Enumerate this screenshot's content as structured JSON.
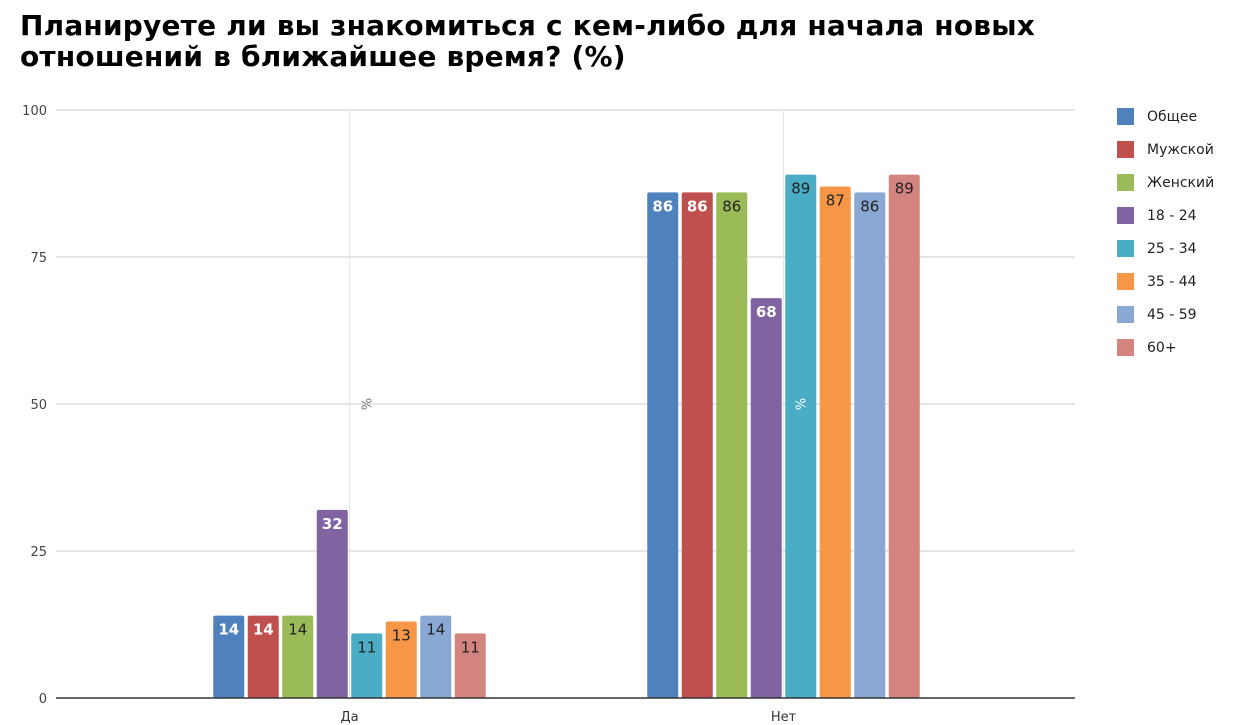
{
  "chart_data": {
    "type": "bar",
    "title": "Планируете ли вы знакомиться с кем-либо для начала новых отношений в ближайшее время? (%)",
    "xlabel": "",
    "ylabel": "%",
    "ylim": [
      0,
      100
    ],
    "yticks": [
      "0",
      "25",
      "50",
      "75",
      "100"
    ],
    "categories": [
      "Да",
      "Нет"
    ],
    "grid": true,
    "legend_position": "right",
    "series": [
      {
        "name": "Общее",
        "color": "#4f81bd",
        "label_color": "#ffffff",
        "values": [
          14,
          86
        ]
      },
      {
        "name": "Мужской",
        "color": "#c0504d",
        "label_color": "#ffffff",
        "values": [
          14,
          86
        ]
      },
      {
        "name": "Женский",
        "color": "#9bbb59",
        "label_color": "#222222",
        "values": [
          14,
          86
        ]
      },
      {
        "name": "18 - 24",
        "color": "#8064a2",
        "label_color": "#ffffff",
        "values": [
          32,
          68
        ]
      },
      {
        "name": "25 - 34",
        "color": "#4bacc6",
        "label_color": "#222222",
        "values": [
          11,
          89
        ]
      },
      {
        "name": "35 - 44",
        "color": "#f79646",
        "label_color": "#222222",
        "values": [
          13,
          87
        ]
      },
      {
        "name": "45 - 59",
        "color": "#8aa8d4",
        "label_color": "#222222",
        "values": [
          14,
          86
        ]
      },
      {
        "name": "60+",
        "color": "#d4847f",
        "label_color": "#222222",
        "values": [
          11,
          89
        ]
      }
    ]
  }
}
